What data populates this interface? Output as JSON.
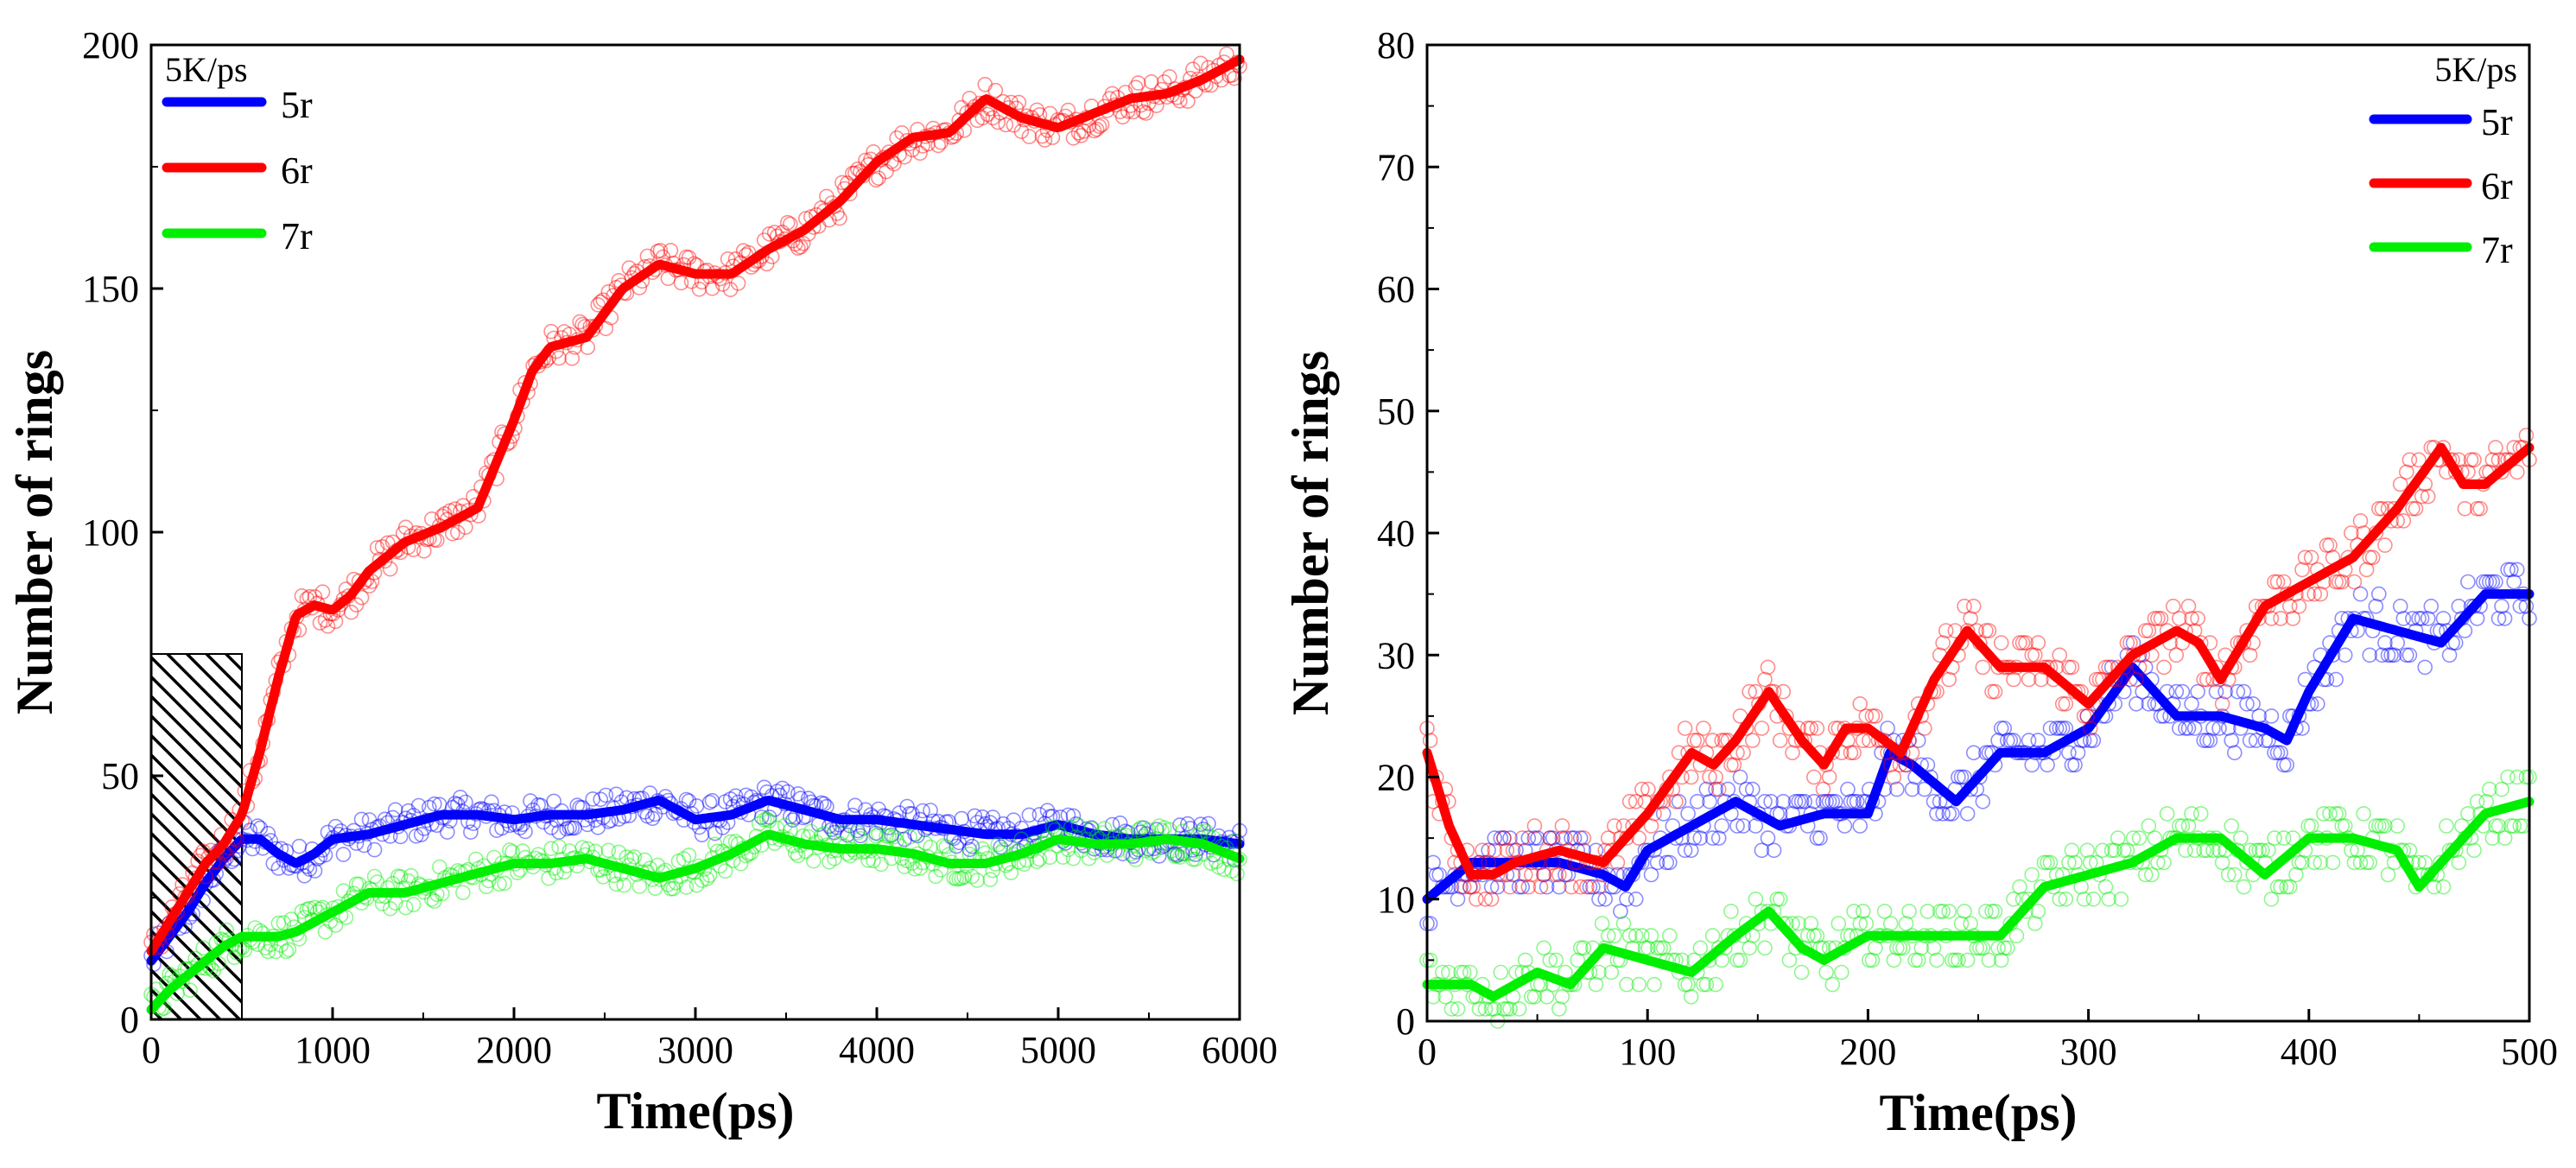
{
  "chart_data": [
    {
      "type": "line",
      "panel": "left",
      "title": "",
      "xlabel": "Time(ps)",
      "ylabel": "Number of rings",
      "xlim": [
        0,
        6000
      ],
      "ylim": [
        0,
        200
      ],
      "xticks": [
        0,
        1000,
        2000,
        3000,
        4000,
        5000,
        6000
      ],
      "yticks": [
        0,
        50,
        100,
        150,
        200
      ],
      "legend_title": "5K/ps",
      "legend_position": "top-left",
      "highlight_region": {
        "x": [
          0,
          500
        ],
        "y": [
          0,
          75
        ],
        "pattern": "hatched"
      },
      "series": [
        {
          "name": "5r",
          "color": "#0000ff",
          "x": [
            0,
            100,
            200,
            300,
            400,
            500,
            600,
            700,
            800,
            900,
            1000,
            1200,
            1400,
            1600,
            1800,
            2000,
            2200,
            2400,
            2600,
            2800,
            3000,
            3200,
            3400,
            3600,
            3800,
            4000,
            4200,
            4400,
            4600,
            4800,
            5000,
            5200,
            5400,
            5600,
            5800,
            6000
          ],
          "values": [
            12,
            17,
            22,
            28,
            33,
            37,
            37,
            34,
            32,
            34,
            37,
            38,
            40,
            42,
            42,
            41,
            42,
            42,
            43,
            45,
            41,
            42,
            45,
            43,
            41,
            41,
            40,
            39,
            38,
            38,
            40,
            38,
            37,
            37,
            37,
            36
          ]
        },
        {
          "name": "6r",
          "color": "#ff0000",
          "x": [
            0,
            100,
            200,
            300,
            400,
            500,
            600,
            700,
            800,
            900,
            1000,
            1100,
            1200,
            1400,
            1600,
            1800,
            2000,
            2100,
            2200,
            2400,
            2600,
            2800,
            3000,
            3200,
            3400,
            3600,
            3800,
            4000,
            4200,
            4400,
            4600,
            4800,
            5000,
            5200,
            5400,
            5600,
            5800,
            6000
          ],
          "values": [
            14,
            20,
            26,
            32,
            36,
            42,
            55,
            70,
            83,
            85,
            84,
            87,
            92,
            98,
            101,
            105,
            123,
            133,
            138,
            140,
            150,
            155,
            153,
            153,
            158,
            162,
            168,
            176,
            181,
            182,
            189,
            185,
            183,
            186,
            189,
            190,
            193,
            197
          ]
        },
        {
          "name": "7r",
          "color": "#00ee00",
          "x": [
            0,
            100,
            200,
            300,
            400,
            500,
            600,
            700,
            800,
            900,
            1000,
            1200,
            1400,
            1600,
            1800,
            2000,
            2200,
            2400,
            2600,
            2800,
            3000,
            3200,
            3400,
            3600,
            3800,
            4000,
            4200,
            4400,
            4600,
            4800,
            5000,
            5200,
            5400,
            5600,
            5800,
            6000
          ],
          "values": [
            2,
            6,
            9,
            12,
            15,
            17,
            17,
            17,
            18,
            20,
            22,
            26,
            26,
            28,
            30,
            32,
            32,
            33,
            31,
            29,
            31,
            34,
            38,
            36,
            35,
            35,
            34,
            32,
            32,
            34,
            37,
            36,
            36,
            37,
            36,
            33
          ]
        }
      ]
    },
    {
      "type": "line",
      "panel": "right",
      "title": "",
      "xlabel": "Time(ps)",
      "ylabel": "Number of rings",
      "xlim": [
        0,
        500
      ],
      "ylim": [
        0,
        80
      ],
      "xticks": [
        0,
        100,
        200,
        300,
        400,
        500
      ],
      "yticks": [
        0,
        10,
        20,
        30,
        40,
        50,
        60,
        70,
        80
      ],
      "legend_title": "5K/ps",
      "legend_position": "top-right",
      "series": [
        {
          "name": "5r",
          "color": "#0000ff",
          "x": [
            0,
            20,
            40,
            60,
            80,
            90,
            100,
            120,
            140,
            160,
            180,
            200,
            210,
            220,
            240,
            260,
            280,
            300,
            320,
            340,
            360,
            380,
            390,
            400,
            420,
            440,
            460,
            480,
            500
          ],
          "values": [
            10,
            13,
            13,
            13,
            12,
            11,
            14,
            16,
            18,
            16,
            17,
            17,
            22,
            21,
            18,
            22,
            22,
            24,
            29,
            25,
            25,
            24,
            23,
            27,
            33,
            32,
            31,
            35,
            35
          ]
        },
        {
          "name": "6r",
          "color": "#ff0000",
          "x": [
            0,
            10,
            20,
            30,
            40,
            60,
            80,
            100,
            120,
            130,
            140,
            155,
            170,
            180,
            190,
            200,
            215,
            230,
            245,
            260,
            280,
            300,
            320,
            340,
            350,
            360,
            380,
            400,
            420,
            440,
            460,
            470,
            480,
            500
          ],
          "values": [
            22,
            16,
            12,
            12,
            13,
            14,
            13,
            17,
            22,
            21,
            23,
            27,
            23,
            21,
            24,
            24,
            22,
            28,
            32,
            29,
            29,
            26,
            30,
            32,
            31,
            28,
            34,
            36,
            38,
            42,
            47,
            44,
            44,
            47
          ]
        },
        {
          "name": "7r",
          "color": "#00ee00",
          "x": [
            0,
            20,
            30,
            50,
            65,
            80,
            100,
            120,
            140,
            155,
            170,
            180,
            200,
            220,
            240,
            260,
            280,
            300,
            320,
            340,
            360,
            380,
            400,
            420,
            440,
            450,
            460,
            480,
            500
          ],
          "values": [
            3,
            3,
            2,
            4,
            3,
            6,
            5,
            4,
            7,
            9,
            6,
            5,
            7,
            7,
            7,
            7,
            11,
            12,
            13,
            15,
            15,
            12,
            15,
            15,
            14,
            11,
            13,
            17,
            18
          ]
        }
      ]
    }
  ]
}
